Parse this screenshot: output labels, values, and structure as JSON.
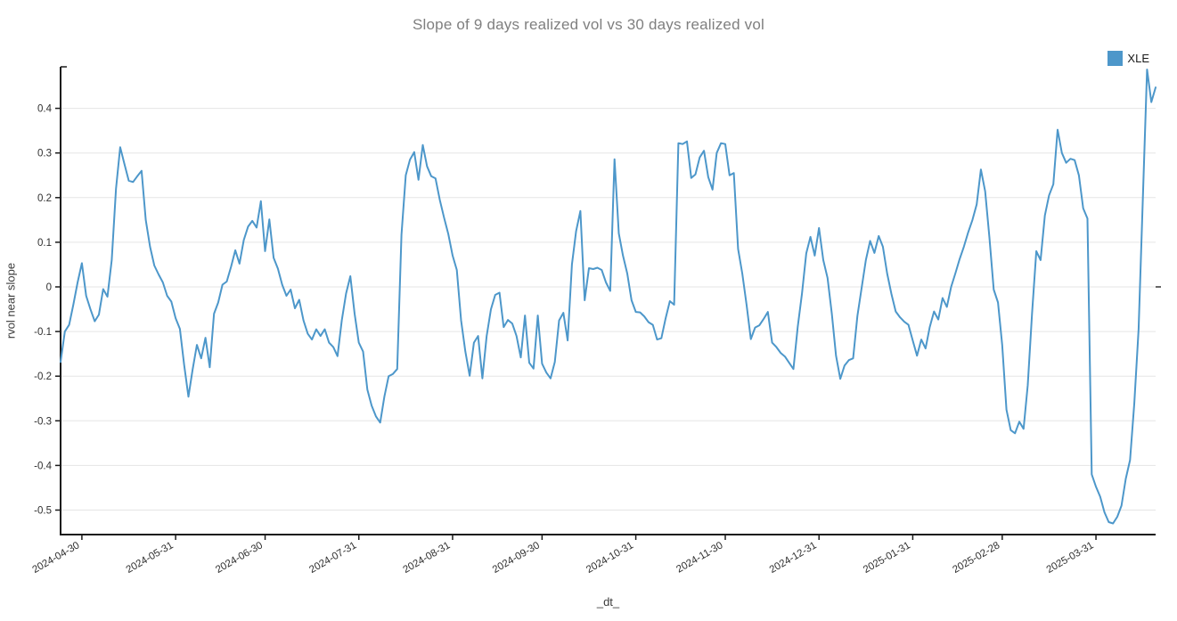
{
  "title": "Slope of 9 days realized vol vs 30 days realized vol",
  "legend": {
    "label": "XLE",
    "swatch_color": "#4d97ca",
    "position": "top-right"
  },
  "colors": {
    "line": "#4d97ca",
    "grid": "#e5e5e5",
    "axis": "#1a1a1a",
    "tick_label": "#303030",
    "title": "#7f7f7f",
    "axis_label": "#3b3b3b",
    "background": "#ffffff"
  },
  "chart_data": {
    "type": "line",
    "title": "Slope of 9 days realized vol vs 30 days realized vol",
    "xlabel": "_dt_",
    "ylabel": "rvol near slope",
    "grid": true,
    "legend_position": "top-right",
    "x_axis": {
      "label": "_dt_",
      "kind": "datetime-trading-days",
      "start": "2024-04-23",
      "end": "2025-04-28",
      "tick_labels": [
        "2024-04-30",
        "2024-05-31",
        "2024-06-30",
        "2024-07-31",
        "2024-08-31",
        "2024-09-30",
        "2024-10-31",
        "2024-11-30",
        "2024-12-31",
        "2025-01-31",
        "2025-02-28",
        "2025-03-31"
      ],
      "tick_indices": [
        5,
        27,
        48,
        70,
        92,
        113,
        135,
        156,
        178,
        200,
        221,
        243
      ],
      "tick_rotation_deg": -30
    },
    "y_axis": {
      "label": "rvol near slope",
      "tick_labels": [
        "0.4",
        "0.3",
        "0.2",
        "0.1",
        "0",
        "-0.1",
        "-0.2",
        "-0.3",
        "-0.4",
        "-0.5"
      ],
      "tick_values": [
        0.4,
        0.3,
        0.2,
        0.1,
        0,
        -0.1,
        -0.2,
        -0.3,
        -0.4,
        -0.5
      ],
      "range": [
        -0.555,
        0.493
      ]
    },
    "series": [
      {
        "name": "XLE",
        "color": "#4d97ca",
        "values": [
          -0.168,
          -0.1,
          -0.085,
          -0.04,
          0.01,
          0.053,
          -0.02,
          -0.05,
          -0.077,
          -0.062,
          -0.005,
          -0.022,
          0.06,
          0.22,
          0.313,
          0.275,
          0.238,
          0.235,
          0.248,
          0.26,
          0.15,
          0.09,
          0.048,
          0.028,
          0.01,
          -0.02,
          -0.033,
          -0.07,
          -0.094,
          -0.175,
          -0.246,
          -0.185,
          -0.13,
          -0.16,
          -0.114,
          -0.18,
          -0.06,
          -0.035,
          0.005,
          0.012,
          0.045,
          0.082,
          0.052,
          0.105,
          0.135,
          0.148,
          0.133,
          0.192,
          0.08,
          0.151,
          0.065,
          0.041,
          0.005,
          -0.02,
          -0.006,
          -0.048,
          -0.029,
          -0.075,
          -0.105,
          -0.118,
          -0.095,
          -0.11,
          -0.095,
          -0.125,
          -0.135,
          -0.155,
          -0.075,
          -0.015,
          0.024,
          -0.06,
          -0.125,
          -0.145,
          -0.23,
          -0.266,
          -0.29,
          -0.304,
          -0.246,
          -0.2,
          -0.195,
          -0.184,
          0.117,
          0.25,
          0.285,
          0.302,
          0.24,
          0.318,
          0.27,
          0.248,
          0.243,
          0.195,
          0.155,
          0.118,
          0.07,
          0.038,
          -0.075,
          -0.145,
          -0.199,
          -0.125,
          -0.11,
          -0.205,
          -0.11,
          -0.05,
          -0.018,
          -0.013,
          -0.09,
          -0.074,
          -0.082,
          -0.11,
          -0.158,
          -0.064,
          -0.17,
          -0.183,
          -0.064,
          -0.172,
          -0.192,
          -0.205,
          -0.168,
          -0.075,
          -0.058,
          -0.12,
          0.05,
          0.125,
          0.17,
          -0.03,
          0.042,
          0.04,
          0.043,
          0.038,
          0.01,
          -0.009,
          0.286,
          0.12,
          0.07,
          0.03,
          -0.03,
          -0.056,
          -0.057,
          -0.066,
          -0.079,
          -0.085,
          -0.118,
          -0.115,
          -0.07,
          -0.032,
          -0.04,
          0.322,
          0.32,
          0.326,
          0.244,
          0.252,
          0.29,
          0.305,
          0.246,
          0.218,
          0.3,
          0.322,
          0.32,
          0.25,
          0.255,
          0.085,
          0.03,
          -0.04,
          -0.117,
          -0.091,
          -0.086,
          -0.072,
          -0.056,
          -0.125,
          -0.135,
          -0.148,
          -0.156,
          -0.17,
          -0.184,
          -0.09,
          -0.015,
          0.075,
          0.112,
          0.07,
          0.132,
          0.06,
          0.02,
          -0.06,
          -0.154,
          -0.206,
          -0.176,
          -0.164,
          -0.16,
          -0.065,
          -0.003,
          0.06,
          0.103,
          0.076,
          0.114,
          0.09,
          0.03,
          -0.016,
          -0.055,
          -0.068,
          -0.078,
          -0.085,
          -0.12,
          -0.154,
          -0.118,
          -0.138,
          -0.09,
          -0.055,
          -0.073,
          -0.025,
          -0.045,
          0.0,
          0.03,
          0.062,
          0.09,
          0.122,
          0.15,
          0.185,
          0.263,
          0.214,
          0.11,
          -0.006,
          -0.035,
          -0.13,
          -0.275,
          -0.321,
          -0.328,
          -0.302,
          -0.318,
          -0.22,
          -0.06,
          0.08,
          0.06,
          0.16,
          0.205,
          0.23,
          0.352,
          0.3,
          0.278,
          0.287,
          0.284,
          0.25,
          0.176,
          0.153,
          -0.42,
          -0.448,
          -0.47,
          -0.505,
          -0.527,
          -0.53,
          -0.515,
          -0.49,
          -0.43,
          -0.388,
          -0.26,
          -0.095,
          0.2,
          0.487,
          0.414,
          0.447
        ]
      }
    ]
  }
}
